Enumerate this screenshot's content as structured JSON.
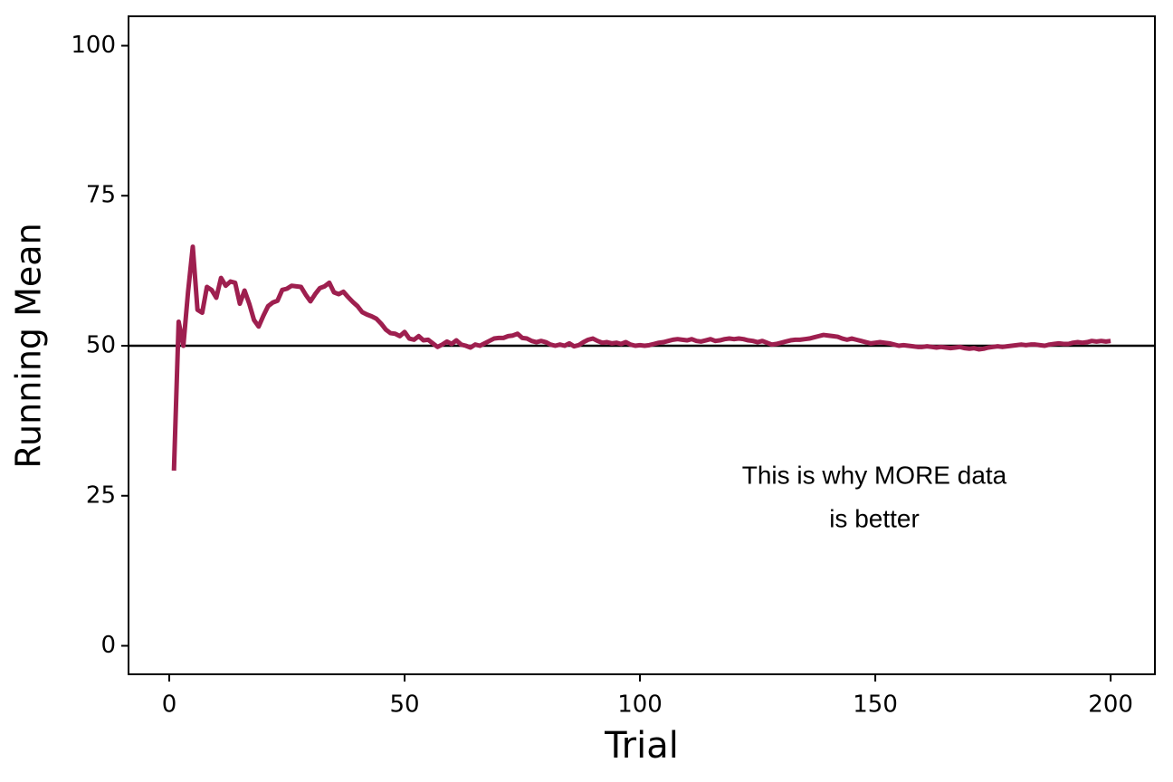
{
  "chart_data": {
    "type": "line",
    "x_label": "Trial",
    "y_label": "Running Mean",
    "annotation": [
      "This is why MORE data",
      "is better"
    ],
    "hline": 50,
    "x": [
      1,
      2,
      3,
      4,
      5,
      6,
      7,
      8,
      9,
      10,
      11,
      12,
      13,
      14,
      15,
      16,
      17,
      18,
      19,
      20,
      21,
      22,
      23,
      24,
      25,
      26,
      27,
      28,
      29,
      30,
      31,
      32,
      33,
      34,
      35,
      36,
      37,
      38,
      39,
      40,
      41,
      42,
      43,
      44,
      45,
      46,
      47,
      48,
      49,
      50,
      51,
      52,
      53,
      54,
      55,
      56,
      57,
      58,
      59,
      60,
      61,
      62,
      63,
      64,
      65,
      66,
      67,
      68,
      69,
      70,
      71,
      72,
      73,
      74,
      75,
      76,
      77,
      78,
      79,
      80,
      81,
      82,
      83,
      84,
      85,
      86,
      87,
      88,
      89,
      90,
      91,
      92,
      93,
      94,
      95,
      96,
      97,
      98,
      99,
      100,
      101,
      102,
      103,
      104,
      105,
      106,
      107,
      108,
      109,
      110,
      111,
      112,
      113,
      114,
      115,
      116,
      117,
      118,
      119,
      120,
      121,
      122,
      123,
      124,
      125,
      126,
      127,
      128,
      129,
      130,
      131,
      132,
      133,
      134,
      135,
      136,
      137,
      138,
      139,
      140,
      141,
      142,
      143,
      144,
      145,
      146,
      147,
      148,
      149,
      150,
      151,
      152,
      153,
      154,
      155,
      156,
      157,
      158,
      159,
      160,
      161,
      162,
      163,
      164,
      165,
      166,
      167,
      168,
      169,
      170,
      171,
      172,
      173,
      174,
      175,
      176,
      177,
      178,
      179,
      180,
      181,
      182,
      183,
      184,
      185,
      186,
      187,
      188,
      189,
      190,
      191,
      192,
      193,
      194,
      195,
      196,
      197,
      198,
      199,
      200
    ],
    "series": [
      {
        "color": "#9e1f4f",
        "values": [
          29.2,
          54,
          50,
          59,
          66.5,
          56,
          55.5,
          59.8,
          59.3,
          58,
          61.3,
          60,
          60.7,
          60.5,
          57,
          59.2,
          57,
          54.3,
          53.2,
          55,
          56.6,
          57.2,
          57.5,
          59.3,
          59.5,
          60,
          59.9,
          59.8,
          58.5,
          57.4,
          58.6,
          59.6,
          59.9,
          60.5,
          58.9,
          58.6,
          59,
          58.1,
          57.3,
          56.6,
          55.6,
          55.2,
          54.9,
          54.5,
          53.7,
          52.7,
          52.1,
          52,
          51.6,
          52.3,
          51.2,
          51,
          51.6,
          50.9,
          51,
          50.4,
          49.8,
          50.2,
          50.7,
          50.3,
          50.9,
          50.2,
          50,
          49.7,
          50.2,
          50,
          50.4,
          50.8,
          51.2,
          51.3,
          51.3,
          51.6,
          51.7,
          52,
          51.3,
          51.2,
          50.8,
          50.6,
          50.8,
          50.6,
          50.2,
          50,
          50.2,
          50,
          50.4,
          49.9,
          50.1,
          50.6,
          51,
          51.2,
          50.8,
          50.5,
          50.6,
          50.4,
          50.5,
          50.3,
          50.6,
          50.2,
          50,
          50.1,
          50,
          50.1,
          50.3,
          50.5,
          50.6,
          50.8,
          51,
          51.1,
          51,
          50.9,
          51.1,
          50.8,
          50.7,
          50.9,
          51.1,
          50.8,
          50.9,
          51.1,
          51.2,
          51.1,
          51.2,
          51.1,
          50.9,
          50.8,
          50.6,
          50.8,
          50.5,
          50.2,
          50.3,
          50.5,
          50.7,
          50.9,
          51,
          51,
          51.1,
          51.2,
          51.4,
          51.6,
          51.8,
          51.7,
          51.6,
          51.5,
          51.2,
          51,
          51.2,
          51,
          50.8,
          50.6,
          50.4,
          50.5,
          50.6,
          50.5,
          50.4,
          50.2,
          50,
          50.1,
          50,
          49.9,
          49.8,
          49.8,
          49.9,
          49.8,
          49.7,
          49.8,
          49.7,
          49.6,
          49.7,
          49.8,
          49.6,
          49.5,
          49.6,
          49.4,
          49.5,
          49.7,
          49.8,
          49.9,
          49.8,
          49.9,
          50,
          50.1,
          50.2,
          50.1,
          50.2,
          50.2,
          50.1,
          50,
          50.2,
          50.3,
          50.4,
          50.3,
          50.3,
          50.5,
          50.6,
          50.5,
          50.6,
          50.8,
          50.7,
          50.8,
          50.7,
          50.8
        ]
      }
    ],
    "xlim": [
      -8.65,
      209.4
    ],
    "ylim": [
      -4.75,
      104.9
    ],
    "xticks": [
      0,
      50,
      100,
      150,
      200
    ],
    "yticks": [
      0,
      25,
      50,
      75,
      100
    ]
  }
}
